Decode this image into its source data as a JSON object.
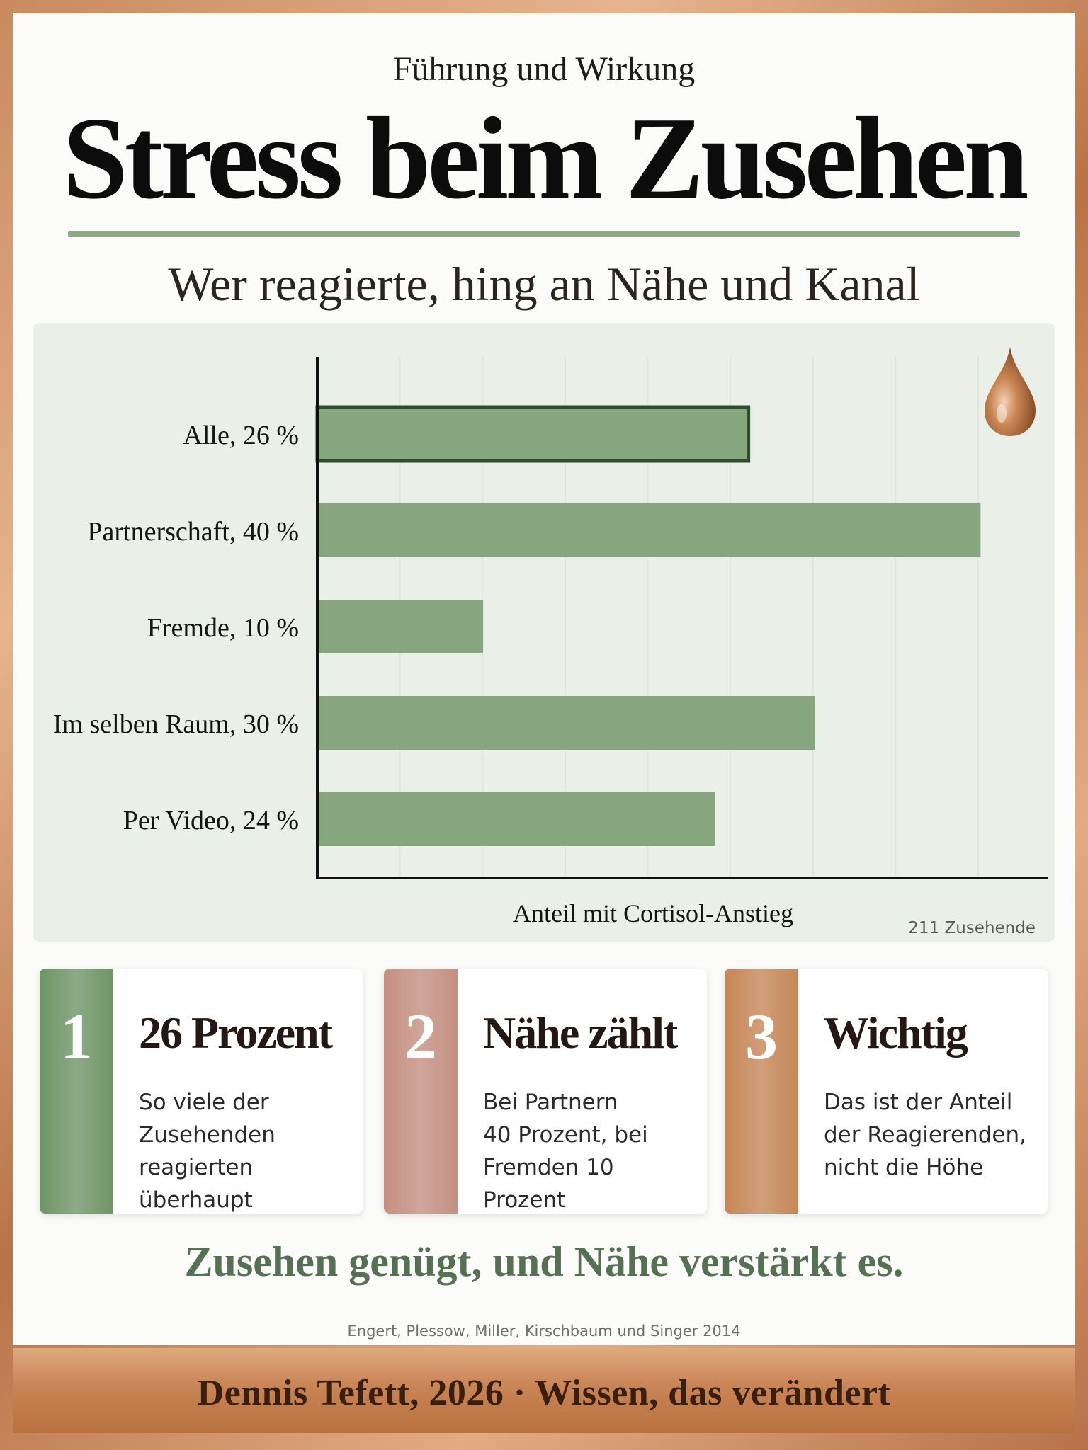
{
  "header": {
    "kicker": "Führung und Wirkung",
    "title": "Stress beim Zusehen",
    "subtitle": "Wer reagierte, hing an Nähe und Kanal"
  },
  "chart_data": {
    "type": "bar",
    "orientation": "horizontal",
    "categories": [
      "Alle, 26 %",
      "Partnerschaft, 40 %",
      "Fremde, 10 %",
      "Im selben Raum, 30 %",
      "Per Video, 24 %"
    ],
    "values": [
      26,
      40,
      10,
      30,
      24
    ],
    "highlighted_category": "Alle, 26 %",
    "xlabel": "Anteil mit Cortisol-Anstieg",
    "ylabel": "",
    "xlim": [
      0,
      44
    ],
    "grid": true,
    "note": "211 Zusehende",
    "colors": {
      "bar": "#86a67f",
      "highlight_border": "#2f4a2c",
      "axis": "#111111",
      "grid": "#dfe4dc"
    }
  },
  "cards": [
    {
      "number": "1",
      "title": "26 Prozent",
      "text": "So viele der\nZusehenden\nreagierten überhaupt",
      "color": "#6f9467"
    },
    {
      "number": "2",
      "title": "Nähe zählt",
      "text": "Bei Partnern\n40 Prozent, bei\nFremden 10 Prozent",
      "color": "#c48f81"
    },
    {
      "number": "3",
      "title": "Wichtig",
      "text": "Das ist der Anteil\nder Reagierenden,\nnicht die Höhe",
      "color": "#c58657"
    }
  ],
  "conclusion": "Zusehen genügt, und Nähe verstärkt es.",
  "citation": "Engert, Plessow, Miller, Kirschbaum und Singer 2014",
  "footer": "Dennis Tefett, 2026 · Wissen, das verändert",
  "icons": {
    "chart_icon": "drop-icon"
  }
}
